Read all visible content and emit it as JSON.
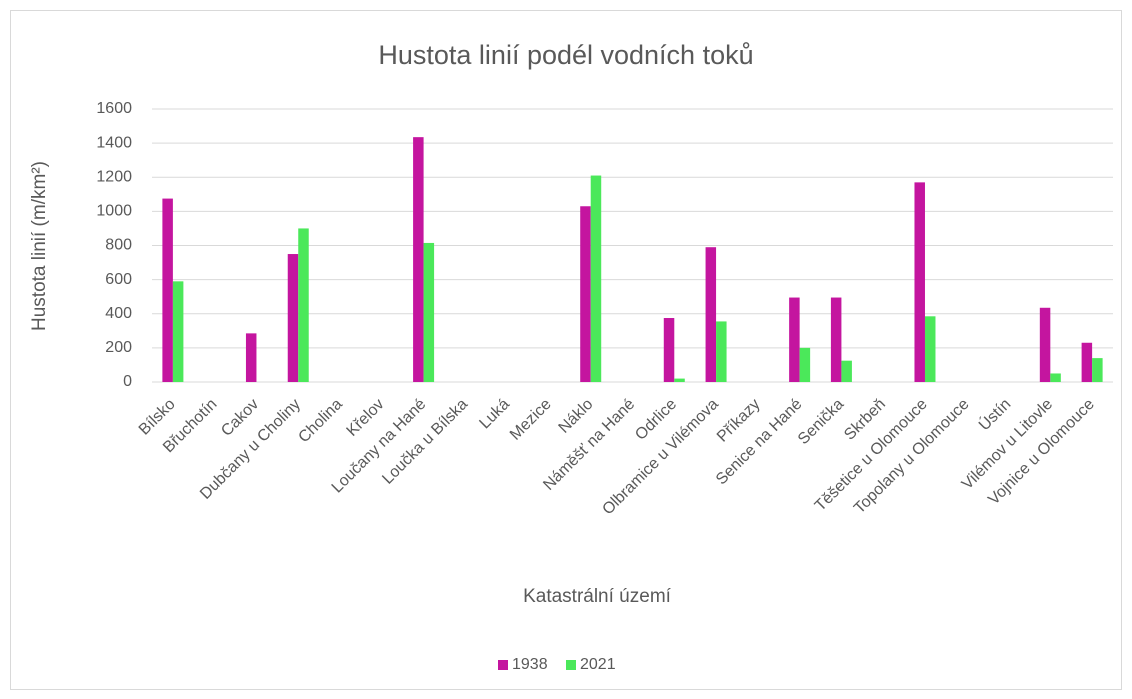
{
  "chart_data": {
    "type": "bar",
    "title": "Hustota linií podél vodních toků",
    "x_label": "Katastrální území",
    "y_label": "Hustota linií (m/km²)",
    "categories": [
      "Bílsko",
      "Břuchotín",
      "Cakov",
      "Dubčany u Choliny",
      "Cholina",
      "Křelov",
      "Loučany na Hané",
      "Loučka u Bílska",
      "Luká",
      "Mezice",
      "Náklo",
      "Náměšť na Hané",
      "Odrlice",
      "Olbramice u Vilémova",
      "Příkazy",
      "Senice na Hané",
      "Senička",
      "Skrbeň",
      "Těšetice u Olomouce",
      "Topolany u Olomouce",
      "Ústín",
      "Vilémov u Litovle",
      "Vojnice u Olomouce"
    ],
    "series": [
      {
        "name": "1938",
        "color": "#c4159f",
        "values": [
          1075,
          0,
          285,
          750,
          0,
          0,
          1435,
          0,
          0,
          0,
          1030,
          0,
          375,
          790,
          0,
          495,
          495,
          0,
          1170,
          0,
          0,
          435,
          230
        ]
      },
      {
        "name": "2021",
        "color": "#4be85a",
        "values": [
          590,
          0,
          0,
          900,
          0,
          0,
          815,
          0,
          0,
          0,
          1210,
          0,
          20,
          355,
          0,
          200,
          125,
          0,
          385,
          0,
          0,
          50,
          140
        ]
      }
    ],
    "ylim": [
      0,
      1600
    ],
    "yticks": [
      0,
      200,
      400,
      600,
      800,
      1000,
      1200,
      1400,
      1600
    ],
    "grid": true,
    "legend": "bottom"
  }
}
